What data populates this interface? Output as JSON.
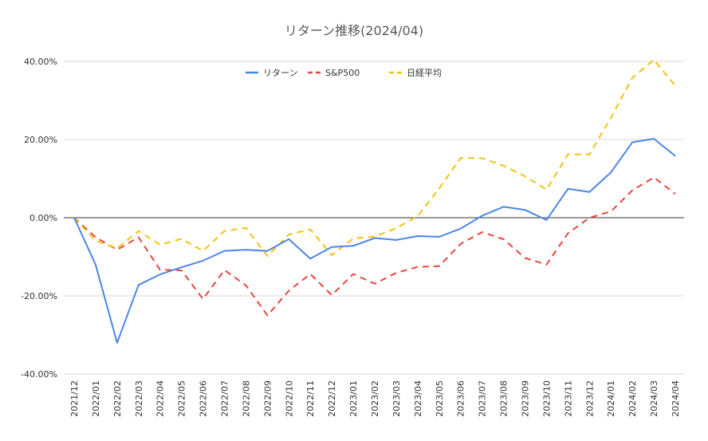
{
  "chart_data": {
    "type": "line",
    "title": "リターン推移(2024/04)",
    "xlabel": "",
    "ylabel": "",
    "ylim": [
      -40,
      40
    ],
    "yticks": [
      40,
      20,
      0,
      -20,
      -40
    ],
    "ytick_labels": [
      "40.00%",
      "20.00%",
      "0.00%",
      "-20.00%",
      "-40.00%"
    ],
    "grid": true,
    "legend_position": "top",
    "categories": [
      "2021/12",
      "2022/01",
      "2022/02",
      "2022/03",
      "2022/04",
      "2022/05",
      "2022/06",
      "2022/07",
      "2022/08",
      "2022/09",
      "2022/10",
      "2022/11",
      "2022/12",
      "2023/01",
      "2023/02",
      "2023/03",
      "2023/04",
      "2023/05",
      "2023/06",
      "2023/07",
      "2023/08",
      "2023/09",
      "2023/10",
      "2023/11",
      "2023/12",
      "2024/01",
      "2024/02",
      "2024/03",
      "2024/04"
    ],
    "series": [
      {
        "name": "リターン",
        "color": "#4a86e8",
        "dash": "solid",
        "values": [
          0,
          -12,
          -32,
          -17.2,
          -14.5,
          -12.7,
          -11,
          -8.5,
          -8.2,
          -8.5,
          -5.5,
          -10.5,
          -7.5,
          -7.2,
          -5.2,
          -5.7,
          -4.7,
          -4.9,
          -2.8,
          0.5,
          2.8,
          2.0,
          -0.6,
          7.4,
          6.6,
          11.6,
          19.3,
          20.2,
          15.8
        ]
      },
      {
        "name": "S&P500",
        "color": "#e8453c",
        "dash": "dashed",
        "values": [
          0,
          -5,
          -8.2,
          -5,
          -13.3,
          -13.5,
          -20.8,
          -13.4,
          -17.3,
          -25,
          -18.7,
          -14.4,
          -19.8,
          -14.4,
          -16.9,
          -14.1,
          -12.6,
          -12.4,
          -6.7,
          -3.7,
          -5.5,
          -10.3,
          -12,
          -4,
          0,
          1.6,
          7,
          10.3,
          6.1
        ]
      },
      {
        "name": "日経平均",
        "color": "#f4c20d",
        "dash": "dashed",
        "values": [
          0,
          -5.9,
          -7.8,
          -3.4,
          -6.9,
          -5.4,
          -8.5,
          -3.4,
          -2.6,
          -9.8,
          -4.3,
          -3,
          -9.6,
          -5.3,
          -4.8,
          -2.7,
          0.4,
          7.5,
          15.3,
          15.2,
          13.3,
          10.6,
          7.2,
          16.2,
          16.2,
          25.6,
          35.8,
          40.4,
          33.8
        ]
      }
    ]
  }
}
